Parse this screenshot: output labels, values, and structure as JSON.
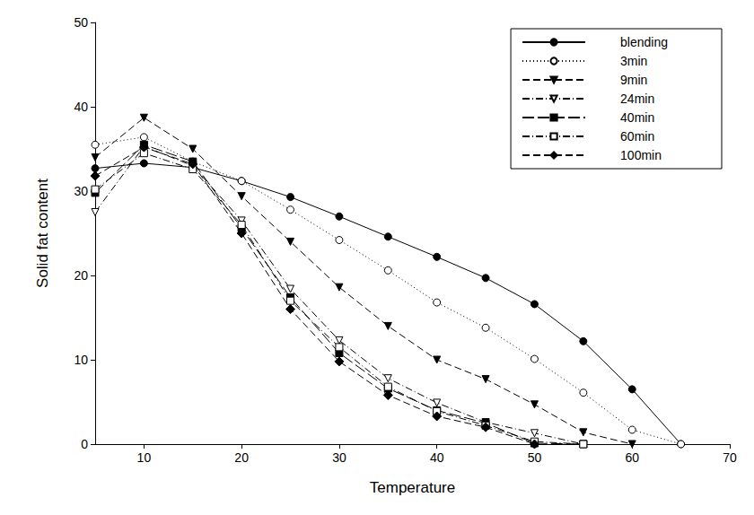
{
  "chart_data": {
    "type": "line",
    "x_label": "Temperature",
    "y_label": "Solid fat content",
    "x": [
      5,
      10,
      15,
      20,
      25,
      30,
      35,
      40,
      45,
      50,
      55,
      60,
      65
    ],
    "xlim": [
      5,
      70
    ],
    "xticks": [
      10,
      20,
      30,
      40,
      50,
      60,
      70
    ],
    "ylim": [
      0,
      50
    ],
    "yticks": [
      0,
      10,
      20,
      30,
      40,
      50
    ],
    "grid": false,
    "legend": "upper right",
    "series": [
      {
        "name": "blending",
        "color": "#000000",
        "marker": "circle",
        "line_style": "solid",
        "values": [
          32.7,
          33.3,
          32.8,
          31.2,
          29.3,
          27.0,
          24.6,
          22.2,
          19.7,
          16.6,
          12.2,
          6.5,
          0
        ]
      },
      {
        "name": "3min",
        "color": "#000000",
        "marker": "circle-open",
        "line_style": "dotted",
        "values": [
          35.5,
          36.4,
          33.5,
          31.2,
          27.8,
          24.2,
          20.6,
          16.8,
          13.8,
          10.1,
          6.1,
          1.7,
          0
        ]
      },
      {
        "name": "9min",
        "color": "#000000",
        "marker": "triangle-down",
        "line_style": "dashed",
        "values": [
          34.0,
          38.7,
          35.0,
          29.4,
          24.0,
          18.6,
          14.0,
          10.0,
          7.7,
          4.7,
          1.4,
          0,
          null
        ]
      },
      {
        "name": "24min",
        "color": "#000000",
        "marker": "triangle-down-open",
        "line_style": "dashdot",
        "values": [
          27.5,
          35.3,
          33.0,
          26.5,
          18.4,
          12.3,
          7.8,
          4.9,
          2.6,
          1.3,
          0,
          null,
          null
        ]
      },
      {
        "name": "40min",
        "color": "#000000",
        "marker": "square",
        "line_style": "longdash",
        "values": [
          29.8,
          35.5,
          33.5,
          25.6,
          17.4,
          10.8,
          6.6,
          4.0,
          2.5,
          0.1,
          0,
          null,
          null
        ]
      },
      {
        "name": "60min",
        "color": "#000000",
        "marker": "square-open",
        "line_style": "dashdot",
        "values": [
          30.2,
          34.5,
          32.6,
          26.0,
          17.0,
          11.5,
          6.8,
          3.9,
          2.2,
          0.3,
          0,
          null,
          null
        ]
      },
      {
        "name": "100min",
        "color": "#000000",
        "marker": "diamond",
        "line_style": "dashed",
        "values": [
          31.8,
          35.2,
          33.2,
          25.0,
          16.0,
          9.8,
          5.8,
          3.3,
          2.0,
          0,
          null,
          null,
          null
        ]
      }
    ]
  }
}
